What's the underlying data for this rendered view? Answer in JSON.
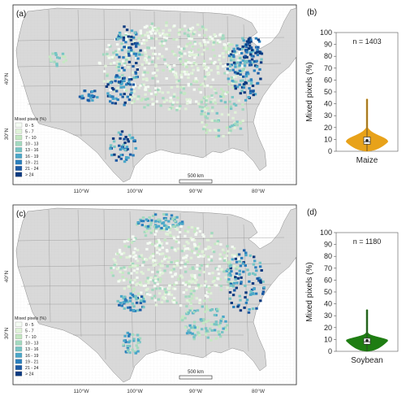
{
  "colors": {
    "land": "#d9d9d9",
    "maize_violin": "#e8a21a",
    "soybean_violin": "#1e7d12",
    "class_colors": [
      "#f4fbf3",
      "#dff2d8",
      "#c4e8c2",
      "#a2d9bf",
      "#76c4c4",
      "#4aa7c9",
      "#2a7fbc",
      "#1c5aa4",
      "#0b3a80"
    ]
  },
  "maps": [
    {
      "panel": "(a)",
      "legend_title": "Mixed pixels (%)",
      "legend": [
        "0 - 5",
        "5 - 7",
        "7 - 10",
        "10 - 13",
        "13 - 16",
        "16 - 19",
        "19 - 21",
        "21 - 24",
        "> 24"
      ],
      "scale_bar": "500 km",
      "lat_labels": [
        "40°N",
        "30°N"
      ],
      "lon_labels": [
        "110°W",
        "100°W",
        "90°W",
        "80°W"
      ]
    },
    {
      "panel": "(c)",
      "legend_title": "Mixed pixels (%)",
      "legend": [
        "0 - 5",
        "5 - 7",
        "7 - 10",
        "10 - 13",
        "13 - 16",
        "16 - 19",
        "19 - 21",
        "21 - 24",
        "> 24"
      ],
      "scale_bar": "500 km",
      "lat_labels": [
        "40°N",
        "30°N"
      ],
      "lon_labels": [
        "110°W",
        "100°W",
        "90°W",
        "80°W"
      ]
    }
  ],
  "chart_data": [
    {
      "type": "violin",
      "panel": "(b)",
      "category": "Maize",
      "ylabel": "Mixed pixels (%)",
      "ylim": [
        0,
        100
      ],
      "yticks": [
        0,
        10,
        20,
        30,
        40,
        50,
        60,
        70,
        80,
        90,
        100
      ],
      "annotation": "n = 1403",
      "distribution": {
        "min": 0,
        "q1": 6,
        "median": 8,
        "mean": 9,
        "q3": 12,
        "max": 44,
        "mode": 8
      },
      "color": "#e8a21a"
    },
    {
      "type": "violin",
      "panel": "(d)",
      "category": "Soybean",
      "ylabel": "Mixed pixels (%)",
      "ylim": [
        0,
        100
      ],
      "yticks": [
        0,
        10,
        20,
        30,
        40,
        50,
        60,
        70,
        80,
        90,
        100
      ],
      "annotation": "n = 1180",
      "distribution": {
        "min": 0,
        "q1": 6,
        "median": 8,
        "mean": 9,
        "q3": 11,
        "max": 35,
        "mode": 9
      },
      "color": "#1e7d12"
    }
  ]
}
